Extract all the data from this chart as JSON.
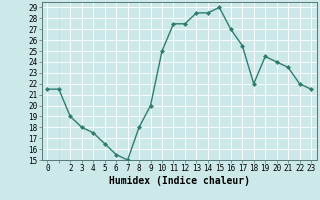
{
  "x": [
    0,
    1,
    2,
    3,
    4,
    5,
    6,
    7,
    8,
    9,
    10,
    11,
    12,
    13,
    14,
    15,
    16,
    17,
    18,
    19,
    20,
    21,
    22,
    23
  ],
  "y": [
    21.5,
    21.5,
    19,
    18,
    17.5,
    16.5,
    15.5,
    15,
    18,
    20,
    25,
    27.5,
    27.5,
    28.5,
    28.5,
    29,
    27,
    25.5,
    22,
    24.5,
    24,
    23.5,
    22,
    21.5
  ],
  "line_color": "#2e7d6e",
  "marker": "D",
  "marker_size": 2.0,
  "bg_color": "#cce8e8",
  "grid_major_color": "#ffffff",
  "grid_minor_color": "#bbdada",
  "xlabel": "Humidex (Indice chaleur)",
  "xlim": [
    -0.5,
    23.5
  ],
  "ylim": [
    15,
    29.5
  ],
  "yticks": [
    15,
    16,
    17,
    18,
    19,
    20,
    21,
    22,
    23,
    24,
    25,
    26,
    27,
    28,
    29
  ],
  "xticks": [
    0,
    2,
    3,
    4,
    5,
    6,
    7,
    8,
    9,
    10,
    11,
    12,
    13,
    14,
    15,
    16,
    17,
    18,
    19,
    20,
    21,
    22,
    23
  ],
  "tick_fontsize": 5.5,
  "label_fontsize": 7,
  "line_width": 1.0
}
